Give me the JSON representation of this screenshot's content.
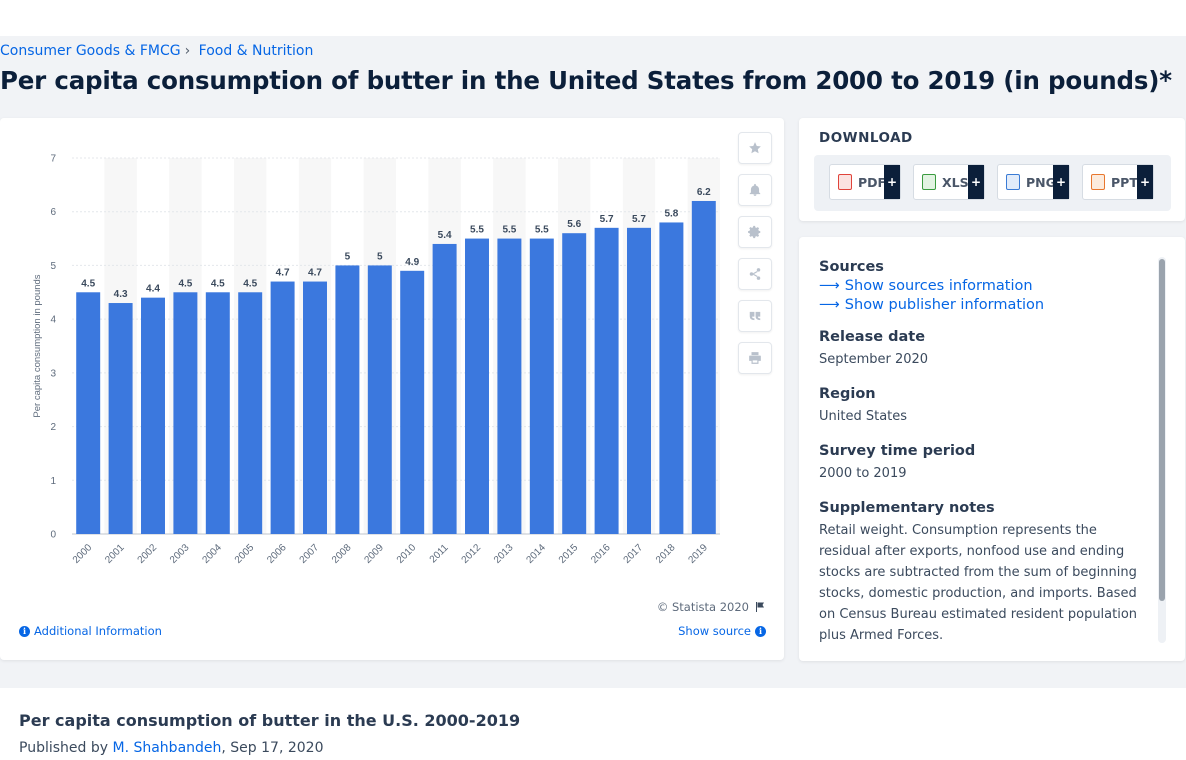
{
  "breadcrumb": [
    {
      "label": "Consumer Goods & FMCG"
    },
    {
      "label": "Food & Nutrition"
    }
  ],
  "breadcrumb_separator": "›",
  "page_title": "Per capita consumption of butter in the United States from 2000 to 2019 (in pounds)*",
  "toolbar": {
    "icons": [
      "star-icon",
      "bell-icon",
      "gear-icon",
      "share-icon",
      "quote-icon",
      "print-icon"
    ]
  },
  "chart_data": {
    "type": "bar",
    "categories": [
      "2000",
      "2001",
      "2002",
      "2003",
      "2004",
      "2005",
      "2006",
      "2007",
      "2008",
      "2009",
      "2010",
      "2011",
      "2012",
      "2013",
      "2014",
      "2015",
      "2016",
      "2017",
      "2018",
      "2019"
    ],
    "values": [
      4.5,
      4.3,
      4.4,
      4.5,
      4.5,
      4.5,
      4.7,
      4.7,
      5,
      5,
      4.9,
      5.4,
      5.5,
      5.5,
      5.5,
      5.6,
      5.7,
      5.7,
      5.8,
      6.2
    ],
    "ylabel": "Per capita consumption in pounds",
    "xlabel": "",
    "ylim": [
      0,
      7
    ],
    "yticks": [
      0,
      1,
      2,
      3,
      4,
      5,
      6,
      7
    ],
    "grid": true,
    "data_labels": true,
    "bar_color": "#3b78de",
    "band_color": "#f7f7f7"
  },
  "chart_footer": {
    "copyright": "© Statista 2020",
    "additional_info": "Additional Information",
    "show_source": "Show source"
  },
  "download": {
    "title": "DOWNLOAD",
    "buttons": [
      {
        "label": "PDF",
        "plus": "+",
        "color": "#e0433a"
      },
      {
        "label": "XLS",
        "plus": "+",
        "color": "#3a9b3f"
      },
      {
        "label": "PNG",
        "plus": "+",
        "color": "#3a7bd5"
      },
      {
        "label": "PPT",
        "plus": "+",
        "color": "#e8772e"
      }
    ]
  },
  "info": {
    "sources_heading": "Sources",
    "show_sources": "Show sources information",
    "show_publisher": "Show publisher information",
    "release_date_heading": "Release date",
    "release_date": "September 2020",
    "region_heading": "Region",
    "region": "United States",
    "survey_period_heading": "Survey time period",
    "survey_period": "2000 to 2019",
    "supplementary_heading": "Supplementary notes",
    "supplementary": "Retail weight. Consumption represents the residual after exports, nonfood use and ending stocks are subtracted from the sum of beginning stocks, domestic production, and imports. Based on Census Bureau estimated resident population plus Armed Forces."
  },
  "bottom": {
    "title": "Per capita consumption of butter in the U.S. 2000-2019",
    "published_by": "Published by",
    "author": "M. Shahbandeh",
    "date": ", Sep 17, 2020"
  }
}
